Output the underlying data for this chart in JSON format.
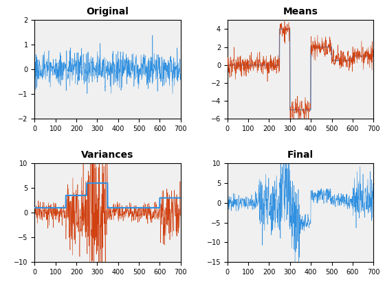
{
  "title1": "Original",
  "title2": "Means",
  "title3": "Variances",
  "title4": "Final",
  "n": 700,
  "seed": 1,
  "mean_segments": [
    {
      "start": 0,
      "end": 250,
      "mean": 0.0
    },
    {
      "start": 250,
      "end": 300,
      "mean": 4.0
    },
    {
      "start": 300,
      "end": 400,
      "mean": -5.0
    },
    {
      "start": 400,
      "end": 500,
      "mean": 2.0
    },
    {
      "start": 500,
      "end": 600,
      "mean": 0.5
    },
    {
      "start": 600,
      "end": 700,
      "mean": 1.0
    }
  ],
  "var_segments": [
    {
      "start": 0,
      "end": 150,
      "std": 1.0
    },
    {
      "start": 150,
      "end": 250,
      "std": 3.5
    },
    {
      "start": 250,
      "end": 350,
      "std": 6.0
    },
    {
      "start": 350,
      "end": 600,
      "std": 1.0
    },
    {
      "start": 600,
      "end": 700,
      "std": 3.0
    }
  ],
  "color_blue": "#3090E0",
  "color_orange": "#D04010",
  "orig_std": 0.35,
  "xlim": [
    0,
    700
  ],
  "ylim1": [
    -2,
    2
  ],
  "ylim2": [
    -6,
    5
  ],
  "ylim3": [
    -10,
    10
  ],
  "ylim4": [
    -15,
    10
  ],
  "title_fontsize": 10,
  "bg_color": "#F0F0F0"
}
